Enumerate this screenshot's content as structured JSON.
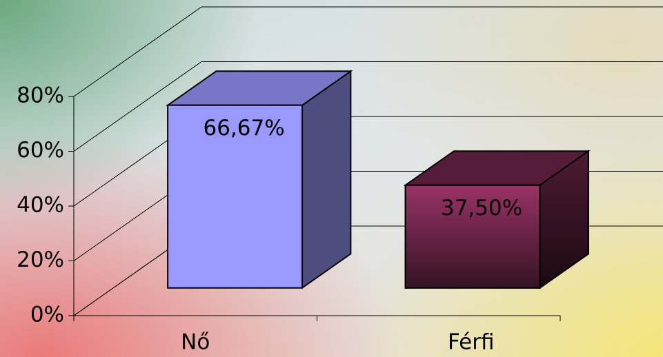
{
  "chart_data": {
    "type": "bar3d",
    "categories": [
      "Nő",
      "Férfi"
    ],
    "values": [
      66.67,
      37.5
    ],
    "value_labels": [
      "66,67%",
      "37,50%"
    ],
    "colors": [
      "#9999ff",
      "#993366"
    ],
    "ylim": [
      0,
      80
    ],
    "yticks": [
      {
        "value": 0,
        "label": "0%"
      },
      {
        "value": 20,
        "label": "20%"
      },
      {
        "value": 40,
        "label": "40%"
      },
      {
        "value": 60,
        "label": "60%"
      },
      {
        "value": 80,
        "label": "80%"
      }
    ],
    "grid": true
  }
}
